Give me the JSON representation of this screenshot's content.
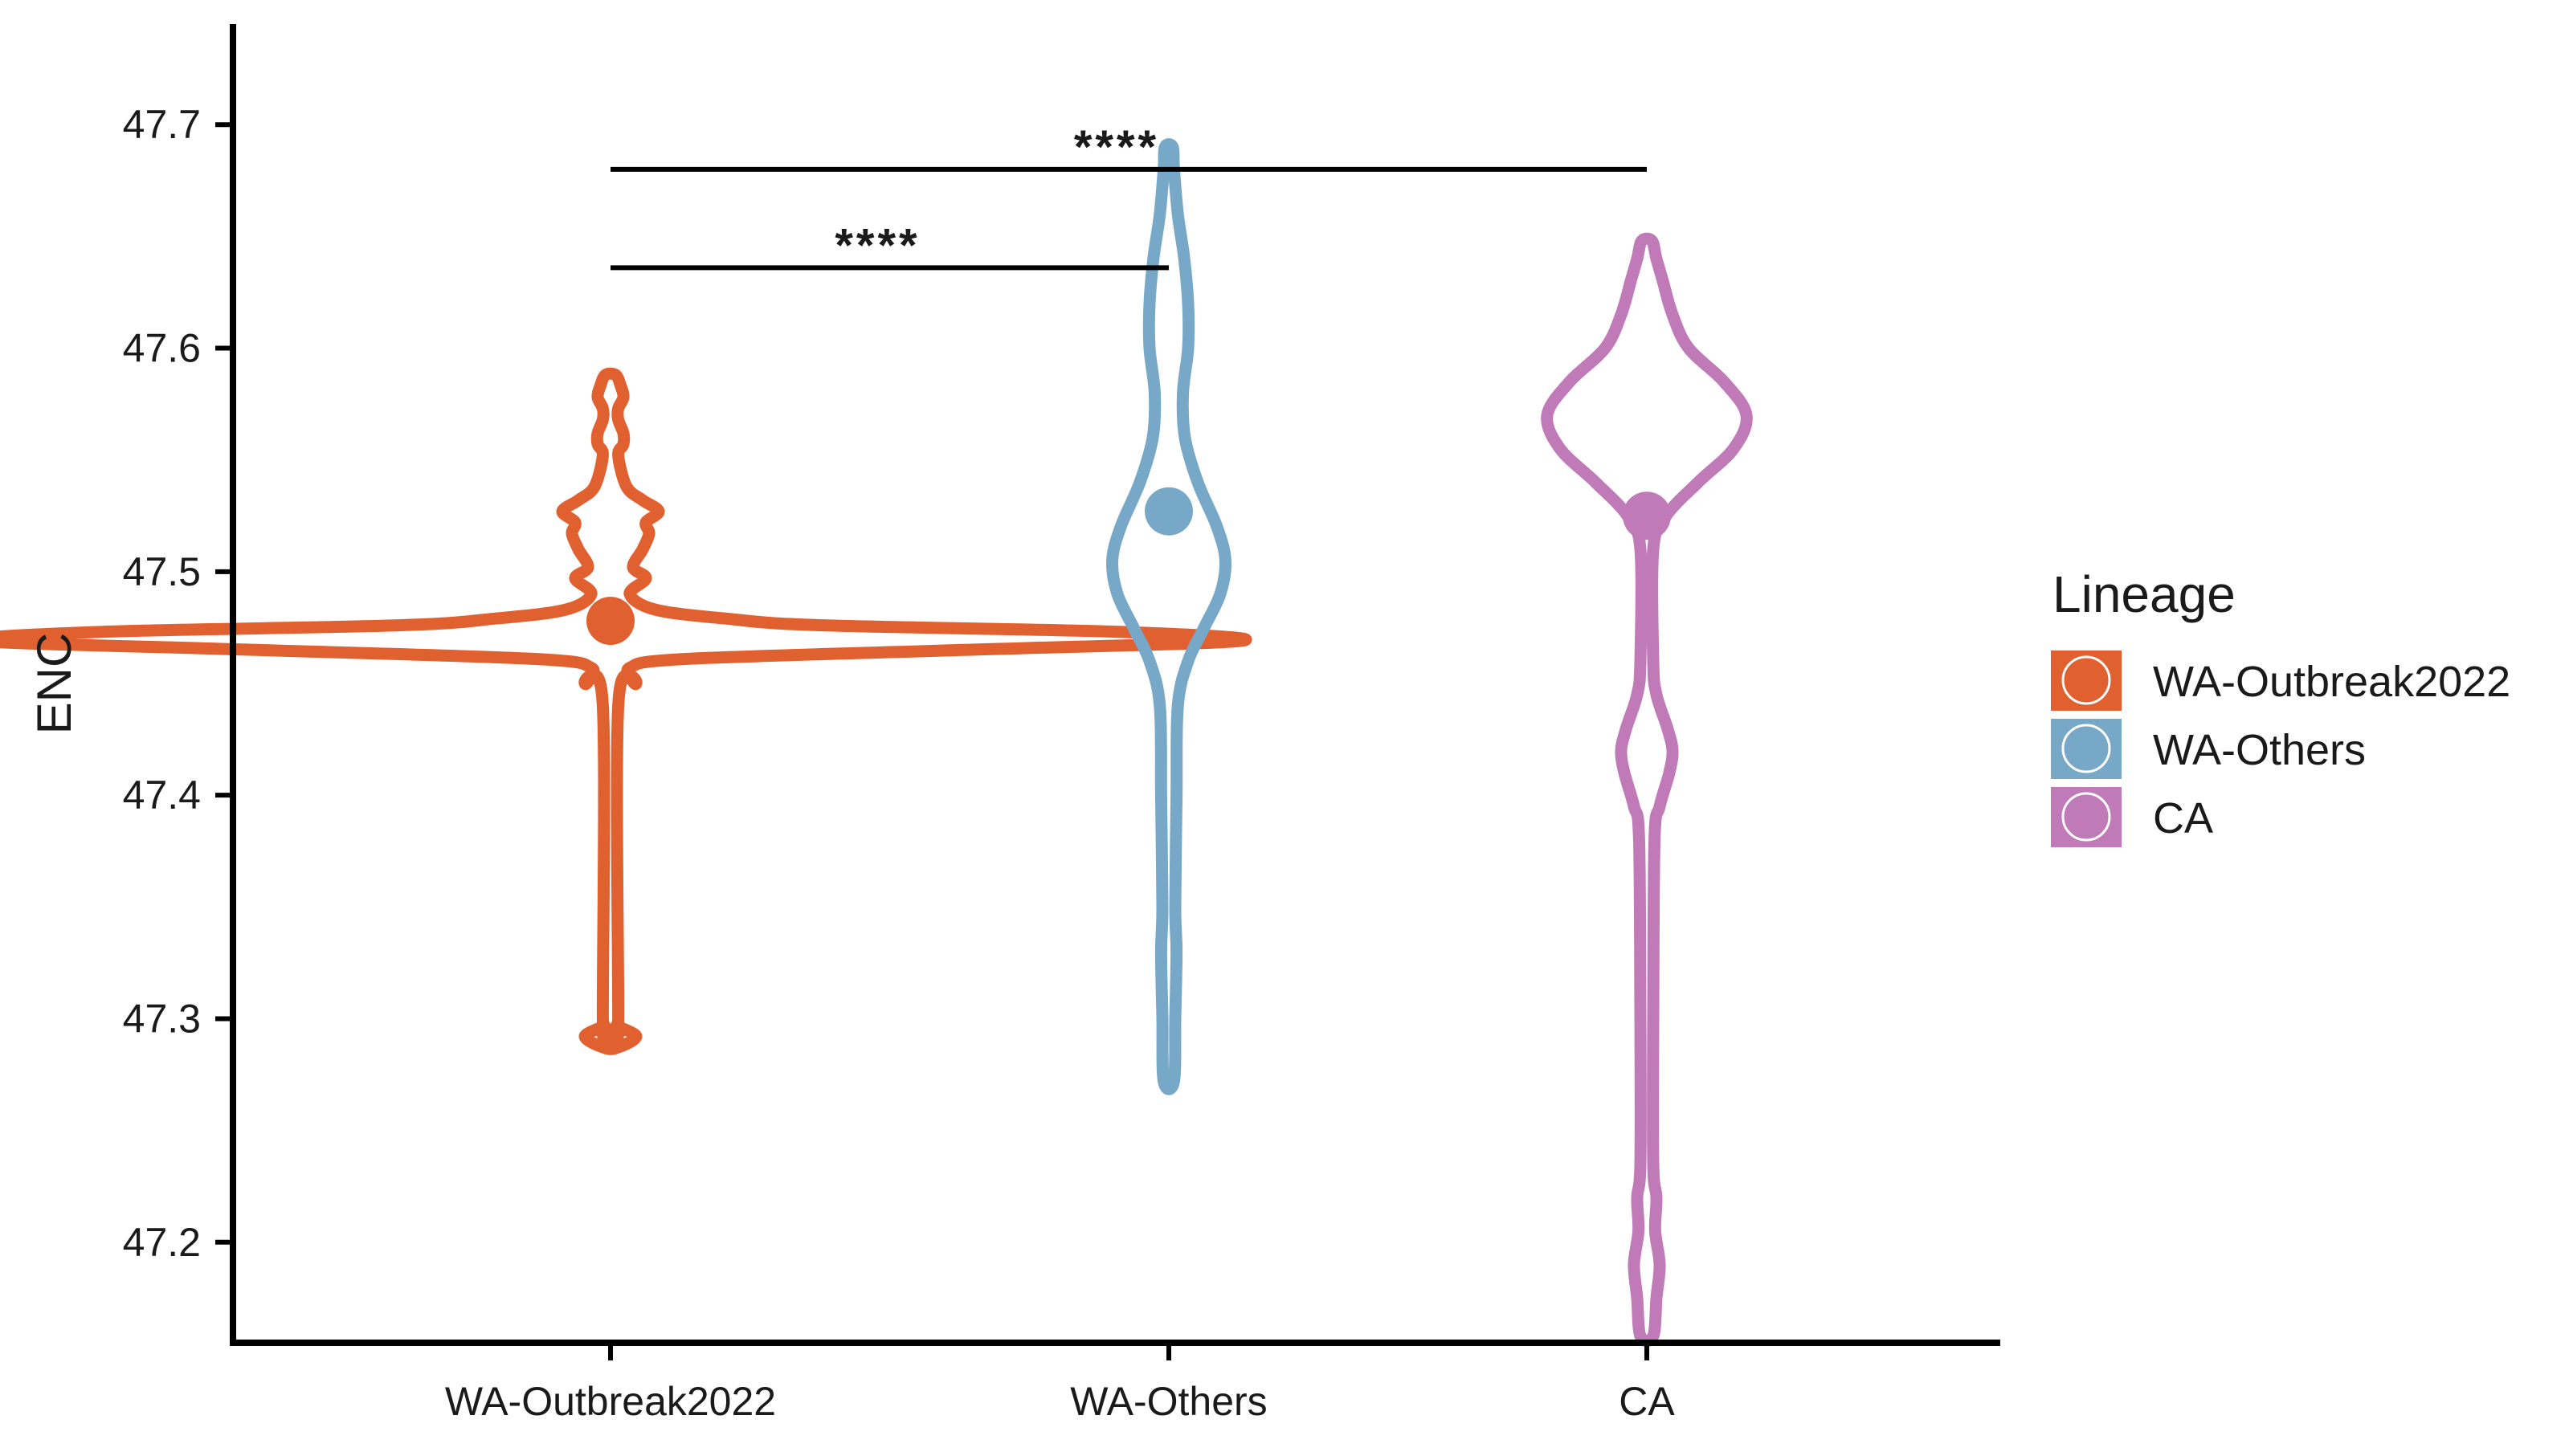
{
  "chart_data": {
    "type": "violin",
    "ylabel": "ENC",
    "xlabel": "",
    "ylim": [
      47.155,
      47.745
    ],
    "yticks": [
      47.2,
      47.3,
      47.4,
      47.5,
      47.6,
      47.7
    ],
    "ytick_labels": [
      "47.2",
      "47.3",
      "47.4",
      "47.5",
      "47.6",
      "47.7"
    ],
    "categories": [
      "WA-Outbreak2022",
      "WA-Others",
      "CA"
    ],
    "legend": {
      "title": "Lineage",
      "position": "right",
      "entries": [
        "WA-Outbreak2022",
        "WA-Others",
        "CA"
      ]
    },
    "series": [
      {
        "name": "WA-Outbreak2022",
        "color": "#E06030",
        "mean": 47.478,
        "range": [
          47.287,
          47.588
        ],
        "profile": [
          [
            47.287,
            0.01
          ],
          [
            47.292,
            0.04
          ],
          [
            47.297,
            0.01
          ],
          [
            47.3,
            0.012
          ],
          [
            47.44,
            0.012
          ],
          [
            47.45,
            0.04
          ],
          [
            47.457,
            0.03
          ],
          [
            47.461,
            0.12
          ],
          [
            47.465,
            0.55
          ],
          [
            47.469,
            0.98
          ],
          [
            47.473,
            0.8
          ],
          [
            47.476,
            0.33
          ],
          [
            47.479,
            0.18
          ],
          [
            47.483,
            0.07
          ],
          [
            47.49,
            0.03
          ],
          [
            47.497,
            0.055
          ],
          [
            47.502,
            0.035
          ],
          [
            47.51,
            0.05
          ],
          [
            47.517,
            0.06
          ],
          [
            47.522,
            0.055
          ],
          [
            47.527,
            0.075
          ],
          [
            47.532,
            0.05
          ],
          [
            47.538,
            0.025
          ],
          [
            47.552,
            0.012
          ],
          [
            47.557,
            0.02
          ],
          [
            47.562,
            0.02
          ],
          [
            47.568,
            0.012
          ],
          [
            47.573,
            0.012
          ],
          [
            47.578,
            0.02
          ],
          [
            47.583,
            0.016
          ],
          [
            47.588,
            0.008
          ]
        ]
      },
      {
        "name": "WA-Others",
        "color": "#78A8C8",
        "mean": 47.527,
        "range": [
          47.272,
          47.69
        ],
        "profile": [
          [
            47.272,
            0.008
          ],
          [
            47.3,
            0.01
          ],
          [
            47.33,
            0.012
          ],
          [
            47.35,
            0.01
          ],
          [
            47.4,
            0.012
          ],
          [
            47.44,
            0.014
          ],
          [
            47.46,
            0.03
          ],
          [
            47.475,
            0.055
          ],
          [
            47.49,
            0.08
          ],
          [
            47.505,
            0.088
          ],
          [
            47.52,
            0.075
          ],
          [
            47.54,
            0.045
          ],
          [
            47.56,
            0.025
          ],
          [
            47.58,
            0.022
          ],
          [
            47.6,
            0.03
          ],
          [
            47.62,
            0.03
          ],
          [
            47.64,
            0.024
          ],
          [
            47.66,
            0.014
          ],
          [
            47.68,
            0.008
          ],
          [
            47.69,
            0.006
          ]
        ]
      },
      {
        "name": "CA",
        "color": "#C07AB8",
        "mean": 47.525,
        "range": [
          47.158,
          47.648
        ],
        "profile": [
          [
            47.158,
            0.01
          ],
          [
            47.175,
            0.015
          ],
          [
            47.19,
            0.02
          ],
          [
            47.205,
            0.013
          ],
          [
            47.22,
            0.015
          ],
          [
            47.235,
            0.01
          ],
          [
            47.3,
            0.01
          ],
          [
            47.38,
            0.012
          ],
          [
            47.395,
            0.02
          ],
          [
            47.41,
            0.035
          ],
          [
            47.42,
            0.04
          ],
          [
            47.43,
            0.032
          ],
          [
            47.445,
            0.015
          ],
          [
            47.46,
            0.01
          ],
          [
            47.51,
            0.01
          ],
          [
            47.525,
            0.03
          ],
          [
            47.54,
            0.08
          ],
          [
            47.555,
            0.135
          ],
          [
            47.57,
            0.155
          ],
          [
            47.585,
            0.12
          ],
          [
            47.6,
            0.065
          ],
          [
            47.615,
            0.04
          ],
          [
            47.63,
            0.025
          ],
          [
            47.64,
            0.015
          ],
          [
            47.648,
            0.008
          ]
        ]
      }
    ],
    "comparisons": [
      {
        "from": "WA-Outbreak2022",
        "to": "WA-Others",
        "label": "****",
        "y": 47.636
      },
      {
        "from": "WA-Outbreak2022",
        "to": "CA",
        "label": "****",
        "y": 47.68
      }
    ]
  }
}
